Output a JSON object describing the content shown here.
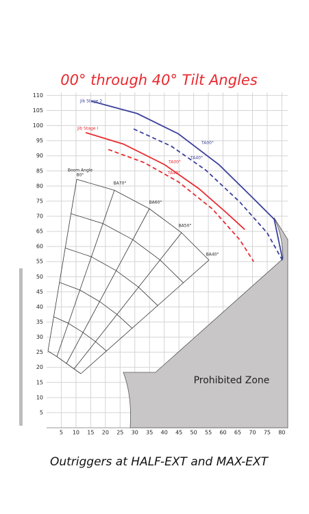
{
  "chart_data": {
    "type": "line",
    "title": "00° through 40° Tilt Angles",
    "footer": "Outriggers at HALF-EXT and MAX-EXT",
    "zone_label": "Prohibited Zone",
    "boom_angle_title": "Boom Angle",
    "boom_angles": [
      "80°",
      "BA70°",
      "BA60°",
      "BA50°",
      "BA40°"
    ],
    "xlim": [
      0,
      82
    ],
    "ylim": [
      0,
      111
    ],
    "xticks": [
      5,
      10,
      15,
      20,
      25,
      30,
      35,
      40,
      45,
      50,
      55,
      60,
      65,
      70,
      75,
      80
    ],
    "yticks": [
      5,
      10,
      15,
      20,
      25,
      30,
      35,
      40,
      45,
      50,
      55,
      60,
      65,
      70,
      75,
      80,
      85,
      90,
      95,
      100,
      105,
      110
    ],
    "grid": true,
    "jibs": [
      {
        "name": "Jib Stage 2",
        "color": "#3a3f9a",
        "curves": [
          {
            "label": "TA00°",
            "dashed": false,
            "x": [
              15.2,
              30.8,
              44.8,
              58.7,
              70.4,
              77.4,
              80.2
            ],
            "values": [
              108.1,
              104,
              97.3,
              87,
              75.8,
              69,
              55.9
            ]
          },
          {
            "label": "TA40°",
            "dashed": true,
            "x": [
              29.6,
              42.4,
              54.1,
              65.7,
              75,
              80.2
            ],
            "values": [
              98.9,
              93.2,
              85.3,
              74.7,
              64.5,
              55.4
            ]
          }
        ]
      },
      {
        "name": "Jib Stage I",
        "color": "#e8292f",
        "curves": [
          {
            "label": "TA00°",
            "dashed": false,
            "x": [
              13.3,
              26.1,
              40.1,
              51.7,
              61,
              67.4
            ],
            "values": [
              97.7,
              93.9,
              87.1,
              79.2,
              71.3,
              65.6
            ]
          },
          {
            "label": "TA40°",
            "dashed": true,
            "x": [
              21,
              33.1,
              44.8,
              56.4,
              65.7,
              70.4
            ],
            "values": [
              92.1,
              87.8,
              81.4,
              72.4,
              62.2,
              55
            ]
          }
        ]
      }
    ]
  }
}
